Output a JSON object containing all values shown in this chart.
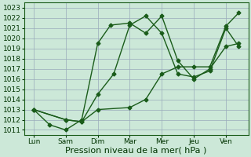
{
  "x_labels": [
    "Lun",
    "Sam",
    "Dim",
    "Mar",
    "Mer",
    "Jeu",
    "Ven"
  ],
  "x_ticks": [
    0,
    1,
    2,
    3,
    4,
    5,
    6
  ],
  "line1_x": [
    0,
    0.5,
    1.0,
    1.5,
    2.0,
    2.4,
    3.0,
    3.5,
    4.0,
    4.5,
    5.0,
    5.5,
    6.0,
    6.4
  ],
  "line1_y": [
    1013,
    1011.5,
    1011.0,
    1012.0,
    1019.5,
    1021.3,
    1021.5,
    1020.5,
    1022.2,
    1017.8,
    1016.0,
    1017.0,
    1019.2,
    1019.5
  ],
  "line2_x": [
    0,
    1.0,
    1.5,
    2.0,
    2.5,
    3.0,
    3.5,
    4.0,
    4.5,
    5.0,
    5.5,
    6.0,
    6.4
  ],
  "line2_y": [
    1013,
    1012.0,
    1011.8,
    1014.5,
    1016.5,
    1021.3,
    1022.2,
    1020.5,
    1016.5,
    1016.2,
    1016.8,
    1021.0,
    1019.2
  ],
  "line3_x": [
    0,
    1.0,
    1.5,
    2.0,
    3.0,
    3.5,
    4.0,
    4.5,
    5.0,
    5.5,
    6.0,
    6.4
  ],
  "line3_y": [
    1013,
    1012.0,
    1011.8,
    1013.0,
    1013.2,
    1014.0,
    1016.5,
    1017.2,
    1017.2,
    1017.2,
    1021.2,
    1022.5
  ],
  "ylim": [
    1010.5,
    1023.5
  ],
  "yticks": [
    1011,
    1012,
    1013,
    1014,
    1015,
    1016,
    1017,
    1018,
    1019,
    1020,
    1021,
    1022,
    1023
  ],
  "xlim": [
    -0.3,
    6.7
  ],
  "xlabel": "Pression niveau de la mer( hPa )",
  "bg_color": "#cce8d8",
  "grid_color": "#99aabb",
  "line_color": "#1a5c1a",
  "axis_color": "#1a5c1a",
  "font_color": "#003300",
  "xlabel_fontsize": 8,
  "tick_fontsize": 6.5,
  "linewidth": 1.0,
  "markersize": 2.5
}
